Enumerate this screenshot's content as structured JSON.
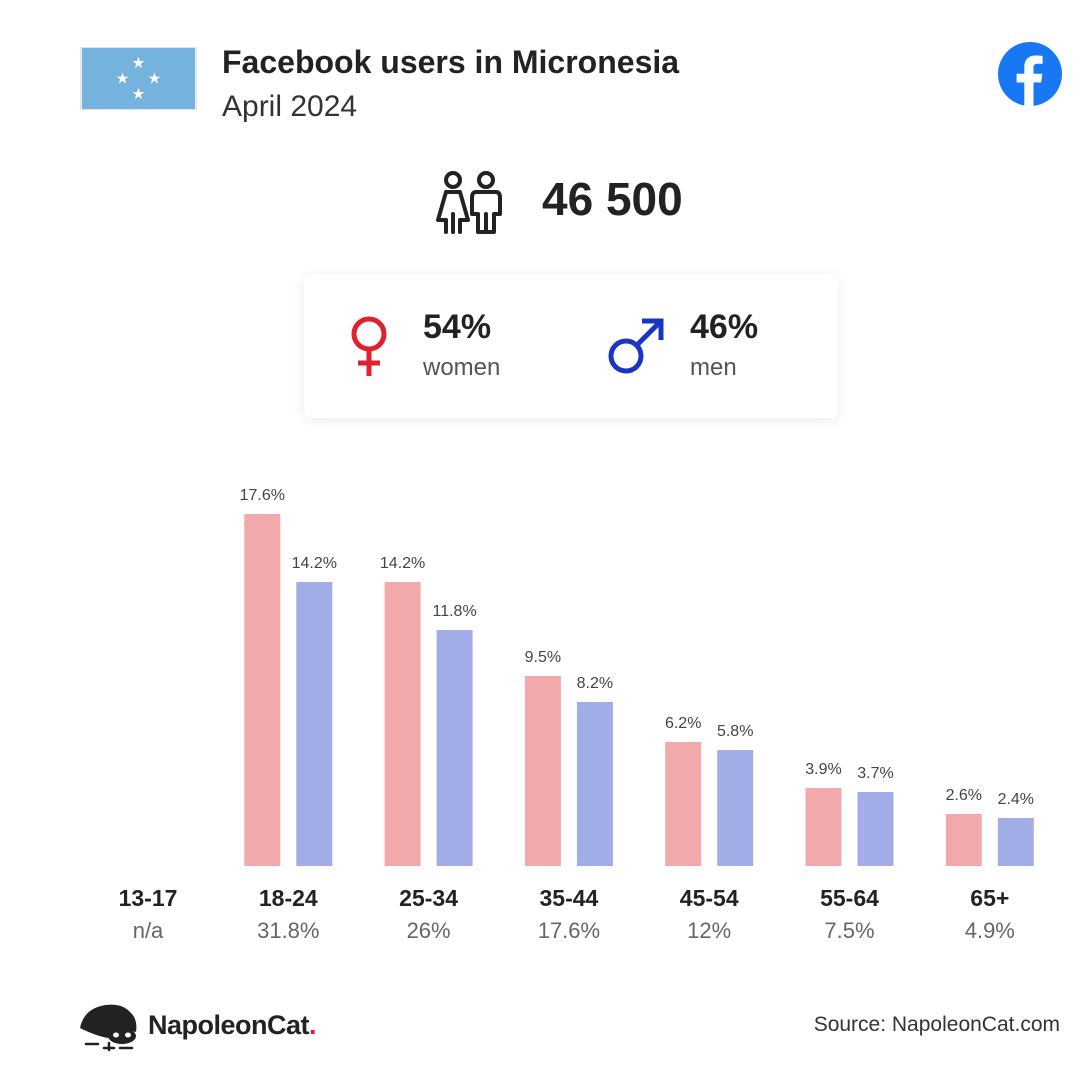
{
  "header": {
    "title": "Facebook users in Micronesia",
    "subtitle": "April 2024"
  },
  "total_users": "46 500",
  "gender": {
    "women_pct": "54%",
    "women_label": "women",
    "men_pct": "46%",
    "men_label": "men"
  },
  "colors": {
    "female": "#f2a9ab",
    "male": "#a2ade8",
    "female_icon": "#e0202a",
    "male_icon": "#1a34c4",
    "facebook": "#1877f2",
    "flag": "#75b2dd"
  },
  "icons": {
    "flag": "micronesia-flag-icon",
    "facebook": "facebook-icon",
    "users": "users-icon",
    "female": "female-icon",
    "male": "male-icon",
    "brand": "napoleoncat-icon"
  },
  "chart_data": {
    "type": "bar",
    "categories": [
      "13-17",
      "18-24",
      "25-34",
      "35-44",
      "45-54",
      "55-64",
      "65+"
    ],
    "category_shares": [
      "n/a",
      "31.8%",
      "26%",
      "17.6%",
      "12%",
      "7.5%",
      "4.9%"
    ],
    "series": [
      {
        "values": [
          null,
          17.6,
          14.2,
          9.5,
          6.2,
          3.9,
          2.6
        ],
        "labels": [
          "",
          "17.6%",
          "14.2%",
          "9.5%",
          "6.2%",
          "3.9%",
          "2.6%"
        ],
        "color": "#f2a9ab"
      },
      {
        "values": [
          null,
          14.2,
          11.8,
          8.2,
          5.8,
          3.7,
          2.4
        ],
        "labels": [
          "",
          "14.2%",
          "11.8%",
          "8.2%",
          "5.8%",
          "3.7%",
          "2.4%"
        ],
        "color": "#a2ade8"
      }
    ],
    "ylim": [
      0,
      17.6
    ],
    "grid": false,
    "legend": "none"
  },
  "footer": {
    "brand_name": "NapoleonCat",
    "brand_dot": ".",
    "source": "Source: NapoleonCat.com"
  }
}
